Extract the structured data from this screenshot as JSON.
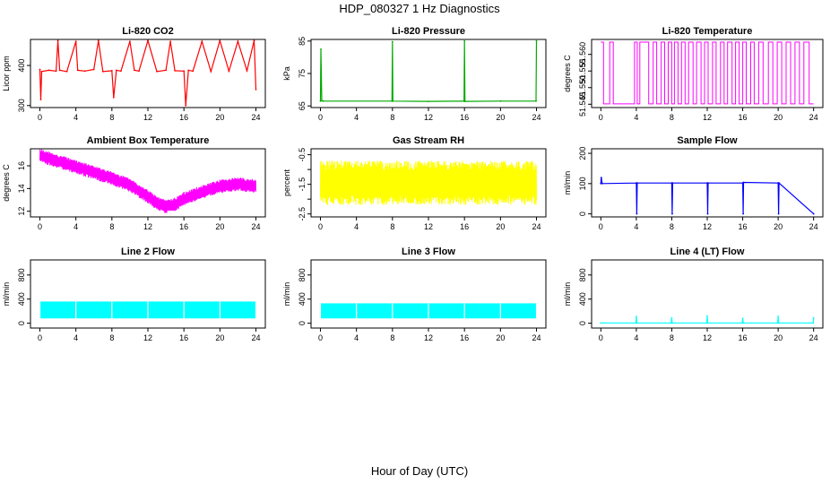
{
  "title": "HDP_080327  1 Hz Diagnostics",
  "xlabel": "Hour of Day (UTC)",
  "chart_data": [
    {
      "type": "line",
      "title": "Li-820 CO2",
      "ylabel": "Licor ppm",
      "color": "#ff0000",
      "xlim": [
        0,
        24
      ],
      "xticks": [
        0,
        4,
        8,
        12,
        16,
        20,
        24
      ],
      "ylim": [
        295,
        465
      ],
      "yticks": [
        300,
        400
      ],
      "series": [
        {
          "name": "CO2",
          "x": [
            0,
            0.1,
            0.2,
            1,
            1.8,
            2,
            2.2,
            3,
            4,
            4.2,
            5,
            6,
            6.5,
            7,
            8,
            8.2,
            8.5,
            9,
            10,
            10.5,
            11,
            12,
            13,
            14,
            14.5,
            15,
            16,
            16.2,
            16.5,
            17,
            18,
            19,
            20,
            21,
            22,
            23,
            23.8,
            24
          ],
          "y": [
            390,
            315,
            385,
            388,
            386,
            462,
            388,
            385,
            460,
            388,
            386,
            390,
            462,
            385,
            387,
            320,
            388,
            386,
            460,
            388,
            386,
            462,
            385,
            388,
            460,
            387,
            386,
            300,
            388,
            386,
            460,
            385,
            462,
            386,
            460,
            387,
            462,
            340
          ]
        }
      ]
    },
    {
      "type": "line",
      "title": "Li-820 Pressure",
      "ylabel": "kPa",
      "color": "#00aa00",
      "xlim": [
        0,
        24
      ],
      "xticks": [
        0,
        4,
        8,
        12,
        16,
        20,
        24
      ],
      "ylim": [
        64.5,
        85.5
      ],
      "yticks": [
        65,
        75,
        85
      ],
      "series": [
        {
          "name": "Pressure",
          "x": [
            0,
            0.05,
            0.15,
            0.3,
            7.95,
            8,
            8.05,
            12,
            15.95,
            16,
            16.05,
            20,
            23.95,
            24
          ],
          "y": [
            66.5,
            82.5,
            66.6,
            66.5,
            66.5,
            84.8,
            66.5,
            66.4,
            66.5,
            85,
            66.4,
            66.5,
            66.5,
            85
          ]
        }
      ]
    },
    {
      "type": "line",
      "title": "Li-820 Temperature",
      "ylabel": "degrees C",
      "color": "#ff00ff",
      "xlim": [
        0,
        24
      ],
      "xticks": [
        0,
        4,
        8,
        12,
        16,
        20,
        24
      ],
      "ylim": [
        51.544,
        51.5645
      ],
      "yticks": [
        51.545,
        51.55,
        51.555,
        51.56
      ],
      "ytick_labels": [
        "51.545",
        "51.550",
        "51.555",
        "51.560"
      ],
      "levels": [
        51.5451,
        51.5637
      ],
      "switch_hours": [
        0.3,
        1.0,
        1.4,
        3.8,
        4.1,
        4.4,
        5.4,
        5.9,
        6.3,
        6.8,
        7.2,
        7.6,
        8.0,
        8.3,
        8.7,
        9.1,
        9.5,
        9.9,
        10.4,
        10.8,
        11.3,
        11.7,
        12.1,
        12.6,
        13.0,
        13.5,
        13.9,
        14.3,
        14.8,
        15.2,
        15.6,
        16.0,
        16.4,
        16.9,
        17.3,
        17.8,
        18.3,
        18.9,
        19.4,
        19.9,
        20.4,
        20.9,
        21.4,
        21.9,
        22.4,
        22.9,
        23.5
      ]
    },
    {
      "type": "line",
      "title": "Ambient Box Temperature",
      "ylabel": "degrees C",
      "color": "#ff00ff",
      "xlim": [
        0,
        24
      ],
      "xticks": [
        0,
        4,
        8,
        12,
        16,
        20,
        24
      ],
      "ylim": [
        11.5,
        17.5
      ],
      "yticks": [
        12,
        14,
        16
      ],
      "band": {
        "x": [
          0,
          2,
          4,
          6,
          8,
          10,
          12,
          13,
          14,
          15,
          16,
          18,
          20,
          22,
          24
        ],
        "ymid": [
          16.9,
          16.4,
          15.9,
          15.4,
          14.9,
          14.3,
          13.3,
          12.7,
          12.4,
          12.6,
          13.1,
          13.7,
          14.2,
          14.4,
          14.2
        ],
        "halfwidth": 0.6
      }
    },
    {
      "type": "line",
      "title": "Gas Stream RH",
      "ylabel": "percent",
      "color": "#ffff00",
      "xlim": [
        0,
        24
      ],
      "xticks": [
        0,
        4,
        8,
        12,
        16,
        20,
        24
      ],
      "ylim": [
        -2.6,
        -0.3
      ],
      "yticks": [
        -2.5,
        -1.5,
        -0.5
      ],
      "yticks_minor": [
        -2.0,
        -1.0
      ],
      "band": {
        "x": [
          0,
          24
        ],
        "ymid": [
          -1.45,
          -1.45
        ],
        "halfwidth": 0.75
      }
    },
    {
      "type": "line",
      "title": "Sample Flow",
      "ylabel": "ml/min",
      "color": "#0000ff",
      "xlim": [
        0,
        24
      ],
      "xticks": [
        0,
        4,
        8,
        12,
        16,
        20,
        24
      ],
      "ylim": [
        -10,
        215
      ],
      "yticks": [
        0,
        100,
        200
      ],
      "series": [
        {
          "name": "Sample Flow",
          "x": [
            0,
            0.05,
            0.15,
            4,
            4.05,
            4.1,
            8,
            8.05,
            8.1,
            12,
            12.05,
            12.1,
            16,
            16.05,
            16.1,
            20,
            20.05,
            20.1,
            24
          ],
          "y": [
            100,
            120,
            100,
            102,
            0,
            102,
            102,
            0,
            102,
            102,
            0,
            102,
            102,
            0,
            104,
            102,
            0,
            102,
            0
          ]
        }
      ]
    },
    {
      "type": "area",
      "title": "Line 2 Flow",
      "ylabel": "ml/min",
      "color": "#00ffff",
      "xlim": [
        0,
        24
      ],
      "xticks": [
        0,
        4,
        8,
        12,
        16,
        20,
        24
      ],
      "ylim": [
        -80,
        1050
      ],
      "yticks": [
        0,
        400,
        800
      ],
      "band": {
        "ylow": 80,
        "yhigh": 360,
        "gaps": [
          4,
          8,
          12,
          16,
          20
        ]
      }
    },
    {
      "type": "area",
      "title": "Line 3 Flow",
      "ylabel": "ml/min",
      "color": "#00ffff",
      "xlim": [
        0,
        24
      ],
      "xticks": [
        0,
        4,
        8,
        12,
        16,
        20,
        24
      ],
      "ylim": [
        -80,
        1050
      ],
      "yticks": [
        0,
        400,
        800
      ],
      "band": {
        "ylow": 80,
        "yhigh": 330,
        "gaps": [
          4,
          8,
          12,
          16,
          20
        ]
      }
    },
    {
      "type": "line",
      "title": "Line 4 (LT) Flow",
      "ylabel": "ml/min",
      "color": "#00ffff",
      "xlim": [
        0,
        24
      ],
      "xticks": [
        0,
        4,
        8,
        12,
        16,
        20,
        24
      ],
      "ylim": [
        -80,
        1050
      ],
      "yticks": [
        0,
        400,
        800
      ],
      "series": [
        {
          "name": "Line 4 Flow",
          "x": [
            0,
            3.95,
            4,
            4.05,
            7.95,
            8,
            8.05,
            11.95,
            12,
            12.05,
            15.95,
            16,
            16.05,
            19.95,
            20,
            20.05,
            23.95,
            24
          ],
          "y": [
            5,
            5,
            110,
            5,
            5,
            90,
            5,
            5,
            120,
            5,
            5,
            80,
            5,
            5,
            115,
            5,
            5,
            90
          ]
        }
      ]
    }
  ]
}
